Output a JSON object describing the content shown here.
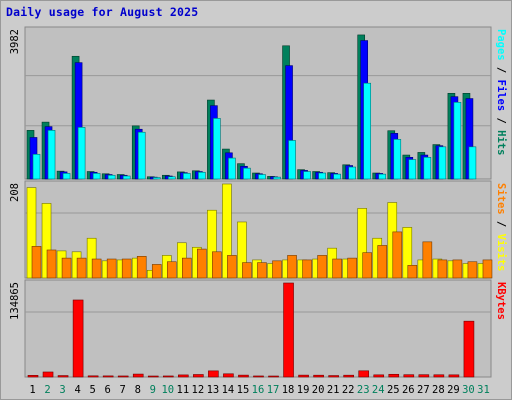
{
  "title": "Daily usage for August 2025",
  "chart_data": [
    {
      "type": "bar",
      "title": "Daily usage for August 2025",
      "panel": "Pages / Files / Hits",
      "categories": [
        "1",
        "2",
        "3",
        "4",
        "5",
        "6",
        "7",
        "8",
        "9",
        "10",
        "11",
        "12",
        "13",
        "14",
        "15",
        "16",
        "17",
        "18",
        "19",
        "20",
        "21",
        "22",
        "23",
        "24",
        "25",
        "26",
        "27",
        "28",
        "29",
        "30",
        "31"
      ],
      "weekend_days": [
        "2",
        "3",
        "9",
        "10",
        "16",
        "17",
        "23",
        "24",
        "30",
        "31"
      ],
      "ymax_label": "3982",
      "ylim": [
        0,
        3982
      ],
      "grid": true,
      "series": [
        {
          "name": "Hits",
          "color": "#00805c",
          "values": [
            1300,
            1520,
            210,
            3280,
            200,
            140,
            120,
            1420,
            60,
            100,
            190,
            220,
            2110,
            800,
            410,
            160,
            70,
            3560,
            250,
            200,
            170,
            380,
            3850,
            160,
            1290,
            640,
            710,
            920,
            2290,
            2290,
            0
          ]
        },
        {
          "name": "Files",
          "color": "#0000ff",
          "values": [
            1110,
            1400,
            190,
            3110,
            180,
            120,
            100,
            1330,
            50,
            80,
            170,
            200,
            1960,
            700,
            340,
            140,
            60,
            3030,
            230,
            180,
            150,
            360,
            3700,
            150,
            1220,
            580,
            640,
            890,
            2200,
            2150,
            0
          ]
        },
        {
          "name": "Pages",
          "color": "#00ffff",
          "values": [
            660,
            1300,
            150,
            1380,
            150,
            100,
            80,
            1250,
            40,
            60,
            150,
            180,
            1620,
            560,
            290,
            120,
            50,
            1030,
            200,
            160,
            130,
            320,
            2560,
            130,
            1060,
            520,
            580,
            860,
            2050,
            860,
            0
          ]
        }
      ]
    },
    {
      "type": "bar",
      "panel": "Sites / Visits",
      "categories": [
        "1",
        "2",
        "3",
        "4",
        "5",
        "6",
        "7",
        "8",
        "9",
        "10",
        "11",
        "12",
        "13",
        "14",
        "15",
        "16",
        "17",
        "18",
        "19",
        "20",
        "21",
        "22",
        "23",
        "24",
        "25",
        "26",
        "27",
        "28",
        "29",
        "30",
        "31"
      ],
      "ymax_label": "208",
      "ylim": [
        0,
        208
      ],
      "grid": true,
      "series": [
        {
          "name": "Visits",
          "color": "#ffff00",
          "values": [
            200,
            165,
            60,
            58,
            88,
            38,
            40,
            44,
            17,
            50,
            78,
            68,
            150,
            208,
            124,
            40,
            32,
            40,
            40,
            42,
            66,
            42,
            154,
            88,
            167,
            112,
            40,
            42,
            38,
            32,
            32
          ]
        },
        {
          "name": "Sites",
          "color": "#ff8000",
          "values": [
            70,
            62,
            44,
            44,
            42,
            42,
            42,
            48,
            30,
            36,
            44,
            64,
            58,
            50,
            34,
            34,
            38,
            50,
            40,
            50,
            42,
            44,
            56,
            72,
            102,
            28,
            80,
            40,
            40,
            36,
            40
          ]
        }
      ]
    },
    {
      "type": "bar",
      "panel": "KBytes",
      "categories": [
        "1",
        "2",
        "3",
        "4",
        "5",
        "6",
        "7",
        "8",
        "9",
        "10",
        "11",
        "12",
        "13",
        "14",
        "15",
        "16",
        "17",
        "18",
        "19",
        "20",
        "21",
        "22",
        "23",
        "24",
        "25",
        "26",
        "27",
        "28",
        "29",
        "30",
        "31"
      ],
      "ymax_label": "134865",
      "ylim": [
        0,
        134865
      ],
      "grid": true,
      "series": [
        {
          "name": "KBytes",
          "color": "#ff0000",
          "values": [
            2400,
            7200,
            2100,
            110500,
            1700,
            1600,
            1500,
            4200,
            900,
            1500,
            3000,
            3600,
            8800,
            4600,
            2700,
            1500,
            1000,
            134865,
            2700,
            2600,
            2100,
            2600,
            8900,
            3100,
            3900,
            3300,
            3300,
            3200,
            3100,
            80100,
            0
          ]
        }
      ]
    }
  ],
  "legend": {
    "top": [
      {
        "text": "Pages",
        "color": "#00ffff"
      },
      {
        "text": " / ",
        "color": "#000000"
      },
      {
        "text": "Files",
        "color": "#0000ff"
      },
      {
        "text": " / ",
        "color": "#000000"
      },
      {
        "text": "Hits",
        "color": "#00805c"
      }
    ],
    "middle": [
      {
        "text": "Sites",
        "color": "#ff8000"
      },
      {
        "text": " / ",
        "color": "#000000"
      },
      {
        "text": "Visits",
        "color": "#ffff00"
      }
    ],
    "bottom": [
      {
        "text": "KBytes",
        "color": "#ff0000"
      }
    ]
  },
  "colors": {
    "frame": "#cccccc",
    "plot_background": "#c0c0c0",
    "gridline": "#999999",
    "title": "#0000cc",
    "weekday_label": "#000000",
    "weekend_label": "#00805c"
  }
}
